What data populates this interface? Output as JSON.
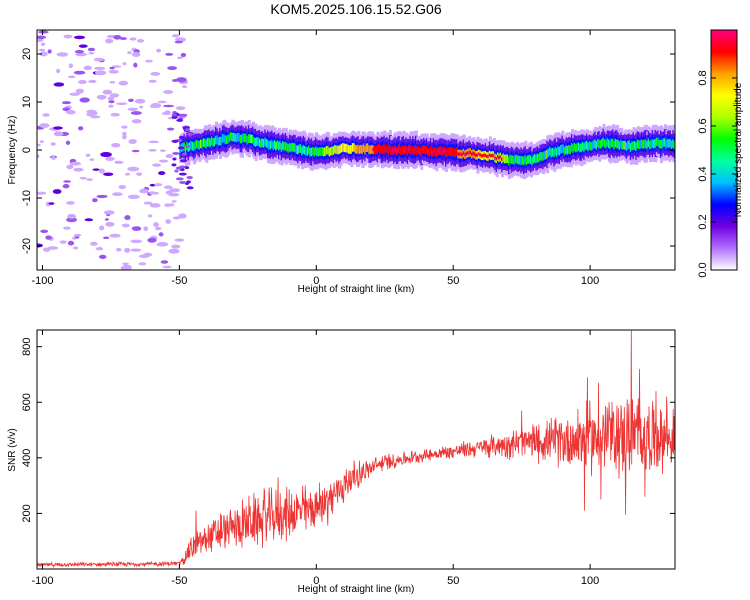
{
  "page": {
    "title": "KOM5.2025.106.15.52.G06"
  },
  "chart_data": [
    {
      "type": "heatmap",
      "title": "KOM5.2025.106.15.52.G06",
      "xlabel": "Height of straight line (km)",
      "ylabel": "Frequency (Hz)",
      "xlim": [
        -102,
        131
      ],
      "ylim": [
        -25,
        25
      ],
      "x_ticks": [
        -100,
        -50,
        0,
        50,
        100
      ],
      "y_ticks": [
        -20,
        -10,
        0,
        10,
        20
      ],
      "colorbar": {
        "label": "Normalized spectral amplitude",
        "range": [
          0,
          1
        ],
        "ticks": [
          "0.0",
          "0.2",
          "0.4",
          "0.6",
          "0.8"
        ],
        "colors": [
          "#ffffff",
          "#b070ff",
          "#7000e0",
          "#0000ff",
          "#00c0ff",
          "#00ffa0",
          "#00ff00",
          "#b0ff00",
          "#ffff00",
          "#ffa000",
          "#ff0000",
          "#ff0080"
        ]
      },
      "ridge_center_hz": [
        {
          "x": -48,
          "y": 0.5
        },
        {
          "x": -40,
          "y": 1.5
        },
        {
          "x": -30,
          "y": 2.8
        },
        {
          "x": -20,
          "y": 1.5
        },
        {
          "x": -10,
          "y": 0.5
        },
        {
          "x": 0,
          "y": -0.5
        },
        {
          "x": 10,
          "y": 0.3
        },
        {
          "x": 20,
          "y": 0.2
        },
        {
          "x": 30,
          "y": 0.0
        },
        {
          "x": 40,
          "y": -0.2
        },
        {
          "x": 50,
          "y": -0.5
        },
        {
          "x": 60,
          "y": -1.0
        },
        {
          "x": 70,
          "y": -2.0
        },
        {
          "x": 78,
          "y": -2.2
        },
        {
          "x": 85,
          "y": -0.5
        },
        {
          "x": 95,
          "y": 0.5
        },
        {
          "x": 105,
          "y": 1.5
        },
        {
          "x": 115,
          "y": 0.8
        },
        {
          "x": 125,
          "y": 1.5
        },
        {
          "x": 131,
          "y": 1.0
        }
      ]
    },
    {
      "type": "line",
      "xlabel": "Height of straight line (km)",
      "ylabel": "SNR (v/v)",
      "xlim": [
        -102,
        131
      ],
      "ylim": [
        0,
        860
      ],
      "x_ticks": [
        -100,
        -50,
        0,
        50,
        100
      ],
      "y_ticks": [
        200,
        400,
        600,
        800
      ],
      "color": "#ee3333",
      "trend": [
        {
          "x": -102,
          "y": 15
        },
        {
          "x": -60,
          "y": 18
        },
        {
          "x": -50,
          "y": 20
        },
        {
          "x": -45,
          "y": 80
        },
        {
          "x": -40,
          "y": 110
        },
        {
          "x": -30,
          "y": 150
        },
        {
          "x": -20,
          "y": 180
        },
        {
          "x": -10,
          "y": 200
        },
        {
          "x": 0,
          "y": 220
        },
        {
          "x": 5,
          "y": 250
        },
        {
          "x": 10,
          "y": 300
        },
        {
          "x": 15,
          "y": 340
        },
        {
          "x": 25,
          "y": 385
        },
        {
          "x": 40,
          "y": 410
        },
        {
          "x": 55,
          "y": 430
        },
        {
          "x": 70,
          "y": 450
        },
        {
          "x": 85,
          "y": 460
        },
        {
          "x": 100,
          "y": 470
        },
        {
          "x": 115,
          "y": 480
        },
        {
          "x": 131,
          "y": 470
        }
      ],
      "noise": [
        {
          "x": -102,
          "y": 8
        },
        {
          "x": -50,
          "y": 10
        },
        {
          "x": -45,
          "y": 60
        },
        {
          "x": -30,
          "y": 90
        },
        {
          "x": -20,
          "y": 120
        },
        {
          "x": -10,
          "y": 110
        },
        {
          "x": 0,
          "y": 100
        },
        {
          "x": 10,
          "y": 80
        },
        {
          "x": 20,
          "y": 40
        },
        {
          "x": 40,
          "y": 25
        },
        {
          "x": 60,
          "y": 40
        },
        {
          "x": 75,
          "y": 70
        },
        {
          "x": 85,
          "y": 90
        },
        {
          "x": 95,
          "y": 140
        },
        {
          "x": 105,
          "y": 160
        },
        {
          "x": 115,
          "y": 180
        },
        {
          "x": 131,
          "y": 120
        }
      ],
      "peaks": [
        {
          "x": -44,
          "y": 210
        },
        {
          "x": -35,
          "y": 200
        },
        {
          "x": -27,
          "y": 250
        },
        {
          "x": -19,
          "y": 290
        },
        {
          "x": -14,
          "y": 330
        },
        {
          "x": -5,
          "y": 300
        },
        {
          "x": 3,
          "y": 290
        },
        {
          "x": 8,
          "y": 310
        },
        {
          "x": 12,
          "y": 355
        },
        {
          "x": 75,
          "y": 570
        },
        {
          "x": 81,
          "y": 500
        },
        {
          "x": 96,
          "y": 520
        },
        {
          "x": 99,
          "y": 690
        },
        {
          "x": 103,
          "y": 670
        },
        {
          "x": 107,
          "y": 600
        },
        {
          "x": 115,
          "y": 860
        },
        {
          "x": 118,
          "y": 720
        },
        {
          "x": 124,
          "y": 640
        },
        {
          "x": 128,
          "y": 620
        }
      ],
      "troughs": [
        {
          "x": 98,
          "y": 210
        },
        {
          "x": 113,
          "y": 195
        },
        {
          "x": 104,
          "y": 250
        },
        {
          "x": 120,
          "y": 260
        }
      ]
    }
  ]
}
